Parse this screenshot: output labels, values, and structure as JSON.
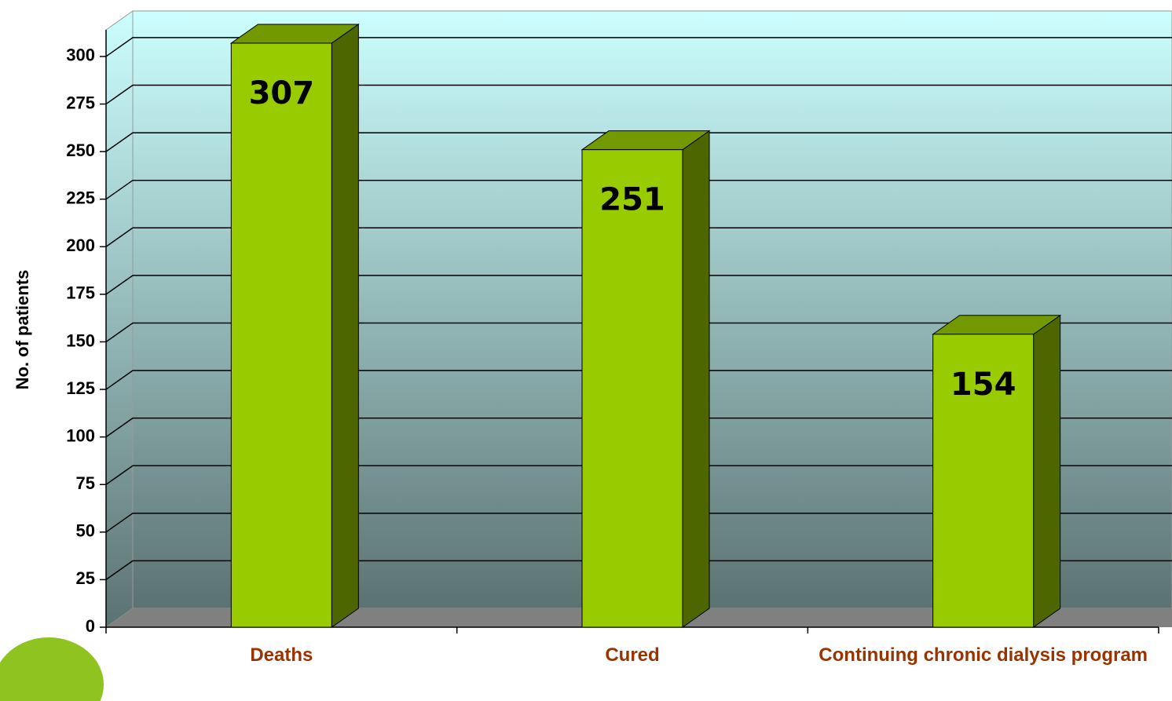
{
  "chart_data": {
    "type": "bar3d",
    "y_label": "No. of patients",
    "categories": [
      "Deaths",
      "Cured",
      "Continuing chronic dialysis program"
    ],
    "values": [
      307,
      251,
      154
    ],
    "color": "#99cc00",
    "ylim": [
      0,
      314
    ],
    "yticks": [
      0,
      25,
      50,
      75,
      100,
      125,
      150,
      175,
      200,
      225,
      250,
      275,
      300
    ],
    "grid": true
  }
}
